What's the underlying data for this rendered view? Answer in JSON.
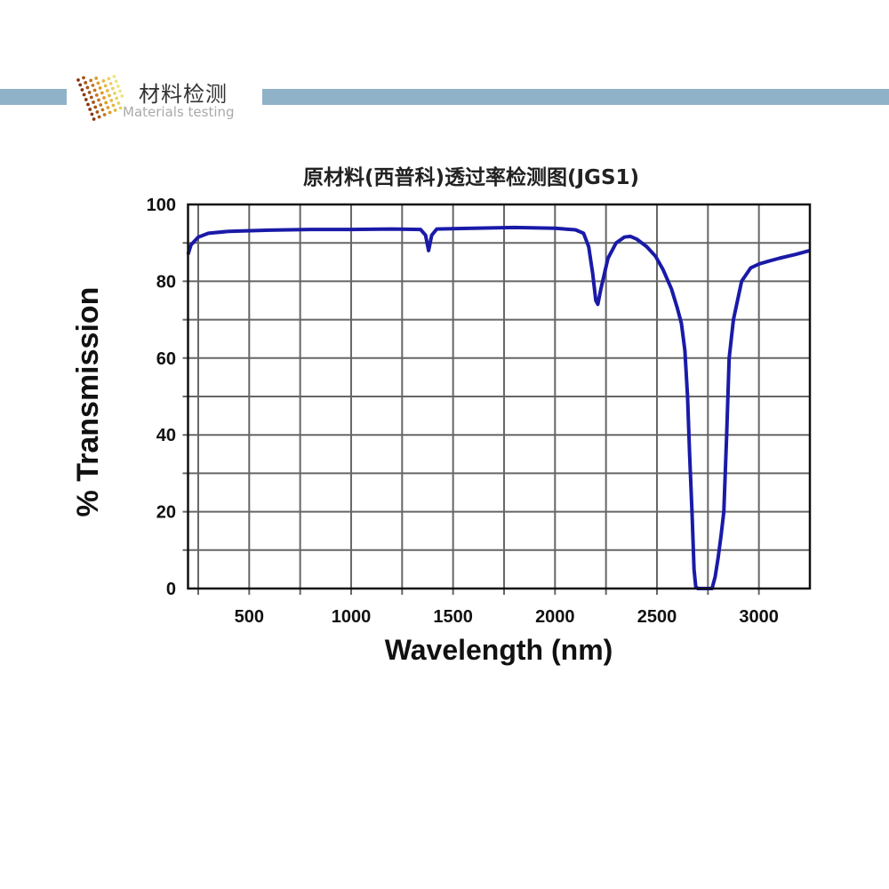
{
  "header": {
    "logo_cn": "材料检测",
    "logo_en": "Materials testing",
    "bar_color": "#8fb2c9"
  },
  "chart_data": {
    "type": "line",
    "title": "原材料(西普科)透过率检测图(JGS1)",
    "xlabel": "Wavelength (nm)",
    "ylabel": "% Transmission",
    "xlim": [
      200,
      3250
    ],
    "ylim": [
      0,
      100
    ],
    "xticks": [
      500,
      1000,
      1500,
      2000,
      2500,
      3000
    ],
    "yticks": [
      0,
      20,
      40,
      60,
      80,
      100
    ],
    "grid": true,
    "grid_x_step": 250,
    "grid_y_step": 10,
    "line_color": "#1a1aa8",
    "series": [
      {
        "points": [
          [
            200,
            87
          ],
          [
            215,
            89.5
          ],
          [
            250,
            91.5
          ],
          [
            300,
            92.5
          ],
          [
            400,
            93
          ],
          [
            600,
            93.3
          ],
          [
            800,
            93.5
          ],
          [
            1000,
            93.5
          ],
          [
            1200,
            93.6
          ],
          [
            1340,
            93.5
          ],
          [
            1365,
            92
          ],
          [
            1380,
            88
          ],
          [
            1395,
            92
          ],
          [
            1420,
            93.6
          ],
          [
            1600,
            93.8
          ],
          [
            1800,
            94
          ],
          [
            2000,
            93.8
          ],
          [
            2100,
            93.4
          ],
          [
            2140,
            92.5
          ],
          [
            2165,
            89
          ],
          [
            2185,
            82
          ],
          [
            2200,
            75
          ],
          [
            2210,
            74
          ],
          [
            2225,
            78
          ],
          [
            2260,
            86
          ],
          [
            2300,
            90
          ],
          [
            2340,
            91.5
          ],
          [
            2370,
            91.7
          ],
          [
            2400,
            91
          ],
          [
            2450,
            89
          ],
          [
            2493,
            86.5
          ],
          [
            2530,
            83
          ],
          [
            2571,
            78
          ],
          [
            2600,
            73
          ],
          [
            2620,
            69
          ],
          [
            2637,
            62
          ],
          [
            2650,
            50
          ],
          [
            2660,
            35
          ],
          [
            2672,
            20
          ],
          [
            2682,
            5
          ],
          [
            2690,
            0.5
          ],
          [
            2700,
            0
          ],
          [
            2770,
            0
          ],
          [
            2785,
            3
          ],
          [
            2800,
            8
          ],
          [
            2815,
            14
          ],
          [
            2828,
            20
          ],
          [
            2842,
            40
          ],
          [
            2854,
            60
          ],
          [
            2875,
            70
          ],
          [
            2915,
            80
          ],
          [
            2960,
            83.5
          ],
          [
            3000,
            84.5
          ],
          [
            3045,
            85.2
          ],
          [
            3100,
            86
          ],
          [
            3180,
            87
          ],
          [
            3250,
            88
          ]
        ]
      }
    ]
  }
}
